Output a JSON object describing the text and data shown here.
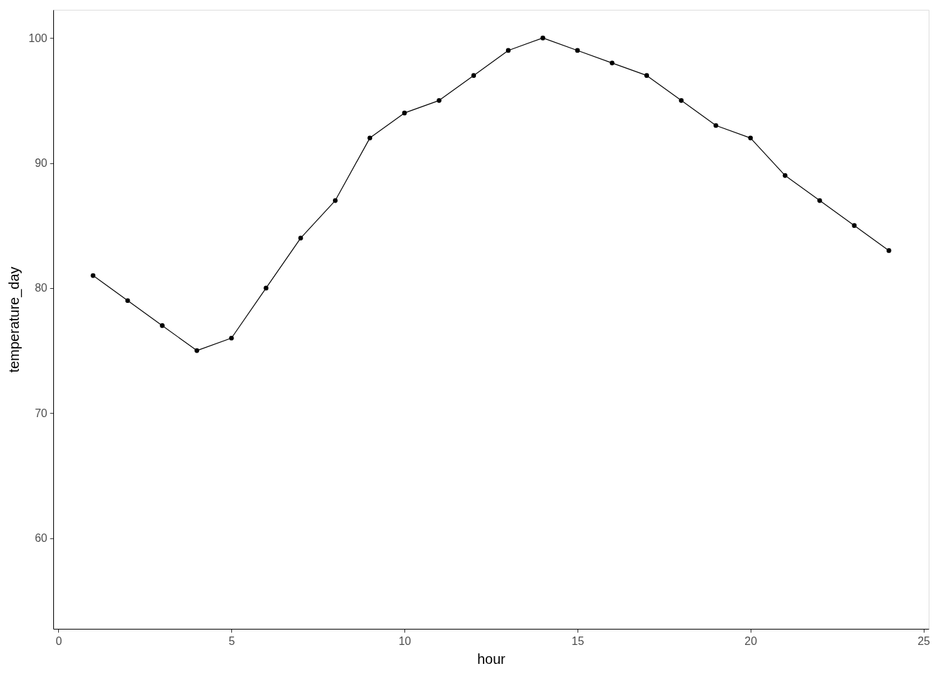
{
  "chart_data": {
    "type": "line",
    "xlabel": "hour",
    "ylabel": "temperature_day",
    "x": [
      1,
      2,
      3,
      4,
      5,
      6,
      7,
      8,
      9,
      10,
      11,
      12,
      13,
      14,
      15,
      16,
      17,
      18,
      19,
      20,
      21,
      22,
      23,
      24
    ],
    "series": [
      {
        "color": "#000000",
        "values": [
          81,
          79,
          77,
          75,
          76,
          80,
          84,
          87,
          92,
          94,
          95,
          97,
          99,
          100,
          99,
          98,
          97,
          95,
          93,
          92,
          89,
          87,
          85,
          83
        ]
      }
    ],
    "xlim": [
      -0.15,
      25.15
    ],
    "ylim": [
      52.75,
      102.25
    ],
    "xticks": [
      0,
      5,
      10,
      15,
      20,
      25
    ],
    "yticks": [
      60,
      70,
      80,
      90,
      100
    ],
    "grid": false,
    "marker": "circle",
    "line_style": "solid"
  }
}
